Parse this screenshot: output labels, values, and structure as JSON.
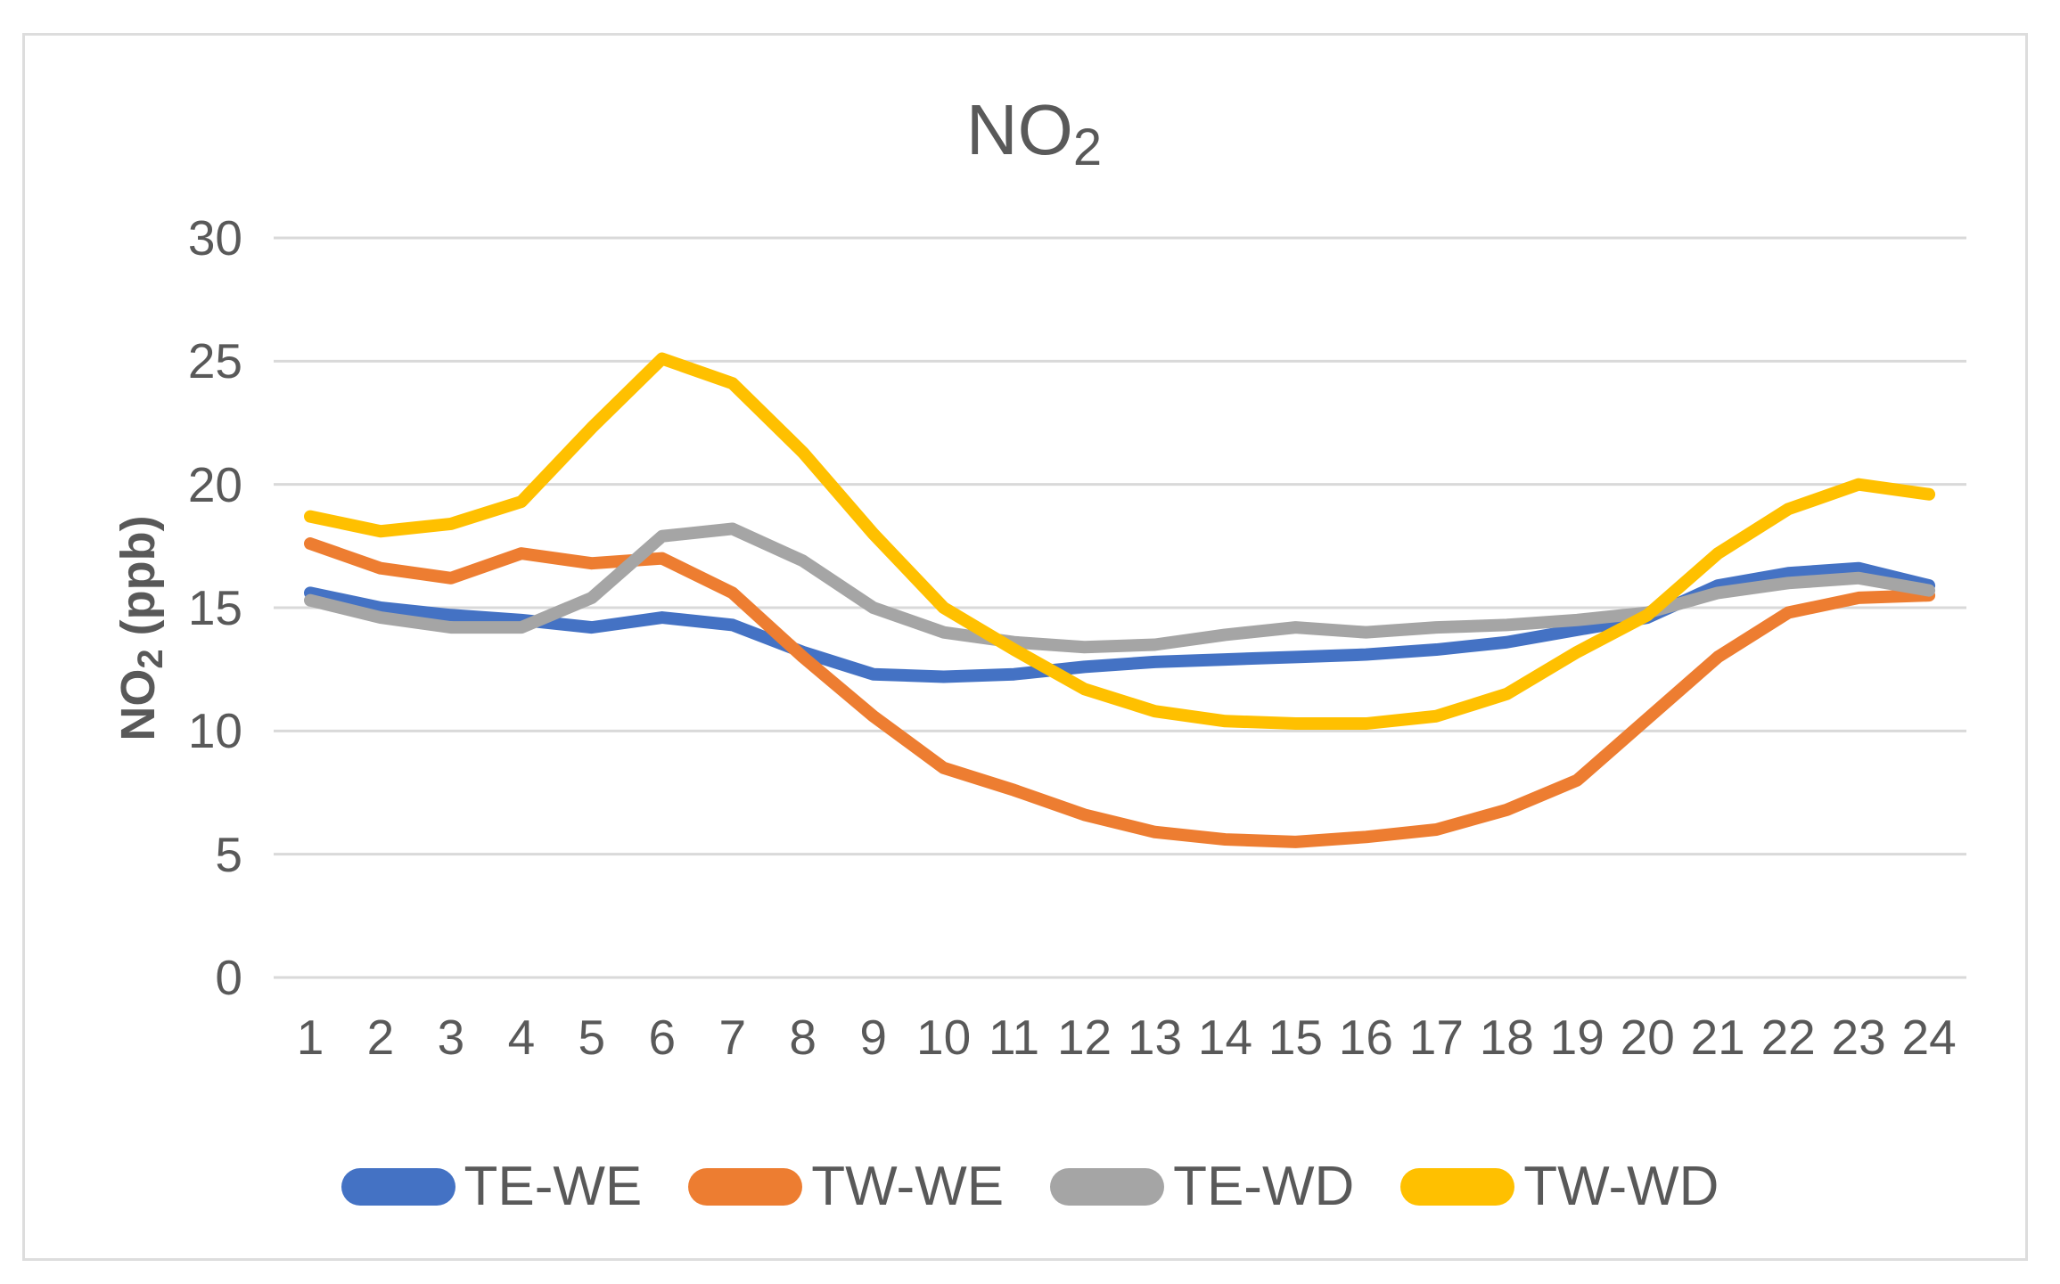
{
  "figure": {
    "title_main": "NO",
    "title_sub": "2",
    "y_axis": {
      "label_main": "NO",
      "label_sub": "2",
      "label_rest": " (ppb)"
    }
  },
  "colors": {
    "text": "#595959",
    "gridline": "#D9D9D9",
    "chart_border": "#DDDDDD",
    "background": "#FFFFFF",
    "series_blue": "#4472C4",
    "series_orange": "#ED7D31",
    "series_gray": "#A5A5A5",
    "series_yellow": "#FFC000"
  },
  "chart_data": {
    "type": "line",
    "title": "NO2",
    "xlabel": "",
    "ylabel": "NO2 (ppb)",
    "ylim": [
      0,
      30
    ],
    "yticks": [
      0,
      5,
      10,
      15,
      20,
      25,
      30
    ],
    "grid": true,
    "legend_position": "bottom",
    "x": [
      1,
      2,
      3,
      4,
      5,
      6,
      7,
      8,
      9,
      10,
      11,
      12,
      13,
      14,
      15,
      16,
      17,
      18,
      19,
      20,
      21,
      22,
      23,
      24
    ],
    "series": [
      {
        "name": "TE-WE",
        "color": "#4472C4",
        "values": [
          15.6,
          15.0,
          14.7,
          14.5,
          14.2,
          14.6,
          14.3,
          13.2,
          12.3,
          12.2,
          12.3,
          12.6,
          12.8,
          12.9,
          13.0,
          13.1,
          13.3,
          13.6,
          14.1,
          14.6,
          15.9,
          16.4,
          16.6,
          15.9
        ]
      },
      {
        "name": "TW-WE",
        "color": "#ED7D31",
        "values": [
          17.6,
          16.6,
          16.2,
          17.2,
          16.8,
          17.0,
          15.6,
          13.0,
          10.6,
          8.5,
          7.6,
          6.6,
          5.9,
          5.6,
          5.5,
          5.7,
          6.0,
          6.8,
          8.0,
          10.5,
          13.0,
          14.8,
          15.4,
          15.5
        ]
      },
      {
        "name": "TE-WD",
        "color": "#A5A5A5",
        "values": [
          15.3,
          14.6,
          14.2,
          14.2,
          15.4,
          17.9,
          18.2,
          16.9,
          15.0,
          14.0,
          13.6,
          13.4,
          13.5,
          13.9,
          14.2,
          14.0,
          14.2,
          14.3,
          14.5,
          14.8,
          15.6,
          16.0,
          16.2,
          15.7
        ]
      },
      {
        "name": "TW-WD",
        "color": "#FFC000",
        "values": [
          18.7,
          18.1,
          18.4,
          19.3,
          22.3,
          25.1,
          24.1,
          21.3,
          18.0,
          15.0,
          13.3,
          11.7,
          10.8,
          10.4,
          10.3,
          10.3,
          10.6,
          11.5,
          13.2,
          14.7,
          17.2,
          19.0,
          20.0,
          19.6
        ]
      }
    ]
  }
}
